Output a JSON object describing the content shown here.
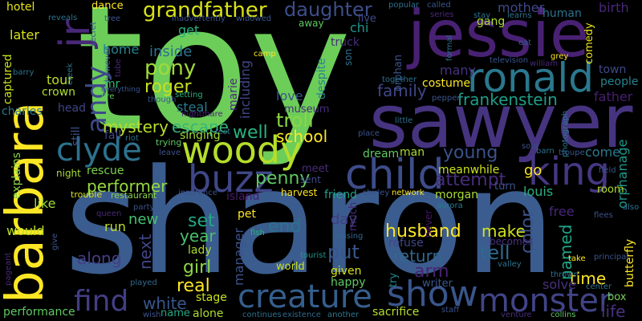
{
  "word_cloud": {
    "background": "#000000",
    "words": [
      {
        "text": "toy",
        "color": "#6dcd59"
      },
      {
        "text": "sharon",
        "color": "#3b5c8e"
      },
      {
        "text": "sawyer",
        "color": "#463480"
      },
      {
        "text": "jessie",
        "color": "#482173"
      },
      {
        "text": "barbara",
        "color": "#fde725"
      },
      {
        "text": "child",
        "color": "#3e4c8a"
      },
      {
        "text": "woody",
        "color": "#b5de2b"
      },
      {
        "text": "ronald",
        "color": "#2a788e"
      },
      {
        "text": "creature",
        "color": "#355f8d"
      },
      {
        "text": "buzz",
        "color": "#3f4788"
      },
      {
        "text": "king",
        "color": "#453781"
      },
      {
        "text": "monster",
        "color": "#414487"
      },
      {
        "text": "show",
        "color": "#39568c"
      },
      {
        "text": "clyde",
        "color": "#2c728e"
      },
      {
        "text": "jr",
        "color": "#482878"
      },
      {
        "text": "find",
        "color": "#433e85"
      },
      {
        "text": "andy",
        "color": "#3e4989"
      },
      {
        "text": "grandfather",
        "color": "#d8e219"
      },
      {
        "text": "daughter",
        "color": "#3d4e8a"
      },
      {
        "text": "pony",
        "color": "#a0da39"
      },
      {
        "text": "roger",
        "color": "#c8e020"
      },
      {
        "text": "family",
        "color": "#3f4788"
      },
      {
        "text": "frankenstein",
        "color": "#1f9e89"
      },
      {
        "text": "mystery",
        "color": "#b8de29"
      },
      {
        "text": "escape",
        "color": "#35b779"
      },
      {
        "text": "troll",
        "color": "#8bd646"
      },
      {
        "text": "school",
        "color": "#fde725"
      },
      {
        "text": "well",
        "color": "#2ab07f"
      },
      {
        "text": "young",
        "color": "#3b528b"
      },
      {
        "text": "attempt",
        "color": "#472d7b"
      },
      {
        "text": "penny",
        "color": "#5ec962"
      },
      {
        "text": "performer",
        "color": "#95d840"
      },
      {
        "text": "husband",
        "color": "#fde725"
      },
      {
        "text": "make",
        "color": "#d2e21b"
      },
      {
        "text": "set",
        "color": "#22a884"
      },
      {
        "text": "year",
        "color": "#4ac16d"
      },
      {
        "text": "end",
        "color": "#2c728e"
      },
      {
        "text": "put",
        "color": "#39568c"
      },
      {
        "text": "tell",
        "color": "#30698e"
      },
      {
        "text": "return",
        "color": "#31688e"
      },
      {
        "text": "arm",
        "color": "#482475"
      },
      {
        "text": "color",
        "color": "#3b528b"
      },
      {
        "text": "named",
        "color": "#20a486"
      },
      {
        "text": "time",
        "color": "#fde725"
      },
      {
        "text": "life",
        "color": "#46327e"
      },
      {
        "text": "real",
        "color": "#fde725"
      },
      {
        "text": "girl",
        "color": "#8bd646"
      },
      {
        "text": "white",
        "color": "#39568c"
      },
      {
        "text": "next",
        "color": "#404688"
      },
      {
        "text": "along",
        "color": "#433e85"
      },
      {
        "text": "new",
        "color": "#46c06f"
      },
      {
        "text": "run",
        "color": "#bddf26"
      },
      {
        "text": "manager",
        "color": "#3b528b"
      },
      {
        "text": "lady",
        "color": "#a8db34"
      },
      {
        "text": "stage",
        "color": "#c8e020"
      },
      {
        "text": "alone",
        "color": "#addc30"
      },
      {
        "text": "name",
        "color": "#22a884"
      },
      {
        "text": "would",
        "color": "#bddf26"
      },
      {
        "text": "like",
        "color": "#a0da39"
      },
      {
        "text": "rescue",
        "color": "#7ad151"
      },
      {
        "text": "captured",
        "color": "#cae11f"
      },
      {
        "text": "charles",
        "color": "#2a788e"
      },
      {
        "text": "explains",
        "color": "#8bd646"
      },
      {
        "text": "performance",
        "color": "#5ec962"
      },
      {
        "text": "tour",
        "color": "#bddf26"
      },
      {
        "text": "crown",
        "color": "#addc30"
      },
      {
        "text": "head",
        "color": "#414487"
      },
      {
        "text": "later",
        "color": "#d8e219"
      },
      {
        "text": "hotel",
        "color": "#e5e419"
      },
      {
        "text": "home",
        "color": "#25848e"
      },
      {
        "text": "mr",
        "color": "#35b779"
      },
      {
        "text": "inside",
        "color": "#2c728e"
      },
      {
        "text": "get",
        "color": "#29af7f"
      },
      {
        "text": "dance",
        "color": "#fde725"
      },
      {
        "text": "chi",
        "color": "#1f958b"
      },
      {
        "text": "truck",
        "color": "#472d7b"
      },
      {
        "text": "despite",
        "color": "#26828e"
      },
      {
        "text": "including",
        "color": "#404688"
      },
      {
        "text": "marie",
        "color": "#482878"
      },
      {
        "text": "love",
        "color": "#39568c"
      },
      {
        "text": "steal",
        "color": "#287c8e"
      },
      {
        "text": "singing",
        "color": "#a0da39"
      },
      {
        "text": "museum",
        "color": "#472c7a"
      },
      {
        "text": "many",
        "color": "#46327e"
      },
      {
        "text": "costume",
        "color": "#fde725"
      },
      {
        "text": "mother",
        "color": "#3f4788"
      },
      {
        "text": "birth",
        "color": "#482878"
      },
      {
        "text": "gang",
        "color": "#addc30"
      },
      {
        "text": "human",
        "color": "#2c728e"
      },
      {
        "text": "comedy",
        "color": "#ece51b"
      },
      {
        "text": "town",
        "color": "#3e4989"
      },
      {
        "text": "people",
        "color": "#25848e"
      },
      {
        "text": "father",
        "color": "#481f70"
      },
      {
        "text": "orphanage",
        "color": "#1f988b"
      },
      {
        "text": "come",
        "color": "#2a788e"
      },
      {
        "text": "go",
        "color": "#fde725"
      },
      {
        "text": "meanwhile",
        "color": "#cae11f"
      },
      {
        "text": "morgan",
        "color": "#a8db34"
      },
      {
        "text": "louis",
        "color": "#29af7f"
      },
      {
        "text": "turn",
        "color": "#3b528b"
      },
      {
        "text": "room",
        "color": "#b5de2b"
      },
      {
        "text": "free",
        "color": "#482878"
      },
      {
        "text": "box",
        "color": "#75d054"
      },
      {
        "text": "butterfly",
        "color": "#fde725"
      },
      {
        "text": "solve",
        "color": "#46327e"
      },
      {
        "text": "writer",
        "color": "#39568c"
      },
      {
        "text": "happy",
        "color": "#5ec962"
      },
      {
        "text": "world",
        "color": "#cae11f"
      },
      {
        "text": "given",
        "color": "#d8e219"
      },
      {
        "text": "sacrifice",
        "color": "#b5de2b"
      },
      {
        "text": "try",
        "color": "#24868e"
      },
      {
        "text": "much",
        "color": "#472a7a"
      },
      {
        "text": "refuse",
        "color": "#3f4788"
      },
      {
        "text": "pet",
        "color": "#fde725"
      },
      {
        "text": "island",
        "color": "#481c6e"
      },
      {
        "text": "meet",
        "color": "#472c7a"
      },
      {
        "text": "friend",
        "color": "#1fa088"
      },
      {
        "text": "harvest",
        "color": "#fde725"
      },
      {
        "text": "sent",
        "color": "#3e4989"
      },
      {
        "text": "dream",
        "color": "#5ec962"
      },
      {
        "text": "man",
        "color": "#a8db34"
      },
      {
        "text": "day",
        "color": "#433e85"
      },
      {
        "text": "fall",
        "color": "#3f4788"
      },
      {
        "text": "night",
        "color": "#a8db34"
      },
      {
        "text": "still",
        "color": "#3b528b"
      },
      {
        "text": "orphan",
        "color": "#3b528b"
      },
      {
        "text": "son",
        "color": "#2c728e"
      },
      {
        "text": "live",
        "color": "#3e4989"
      },
      {
        "text": "becomes",
        "color": "#46327e"
      },
      {
        "text": "never",
        "color": "#481668"
      },
      {
        "text": "restaurant",
        "color": "#8bd646"
      },
      {
        "text": "trouble",
        "color": "#d8e219"
      },
      {
        "text": "insurance",
        "color": "#3b528b"
      },
      {
        "text": "network",
        "color": "#fde725"
      },
      {
        "text": "shirley",
        "color": "#3b528b"
      },
      {
        "text": "aurora",
        "color": "#287c8e"
      },
      {
        "text": "fish",
        "color": "#29af7f"
      },
      {
        "text": "missing",
        "color": "#31688e"
      },
      {
        "text": "tourist",
        "color": "#1f948c"
      },
      {
        "text": "continues",
        "color": "#2c728e"
      },
      {
        "text": "existence",
        "color": "#31688e"
      },
      {
        "text": "another",
        "color": "#2a788e"
      },
      {
        "text": "staff",
        "color": "#3b528b"
      },
      {
        "text": "collins",
        "color": "#5ec962"
      },
      {
        "text": "wish",
        "color": "#3b528b"
      },
      {
        "text": "played",
        "color": "#31688e"
      },
      {
        "text": "venture",
        "color": "#472d7b"
      },
      {
        "text": "center",
        "color": "#2c728e"
      },
      {
        "text": "thrown",
        "color": "#2c728e"
      },
      {
        "text": "valley",
        "color": "#2c728e"
      },
      {
        "text": "principal",
        "color": "#39568c"
      },
      {
        "text": "take",
        "color": "#fde725"
      },
      {
        "text": "also",
        "color": "#2c728e"
      },
      {
        "text": "flees",
        "color": "#3b528b"
      },
      {
        "text": "field",
        "color": "#3b528b"
      },
      {
        "text": "troupe",
        "color": "#39568c"
      },
      {
        "text": "barn",
        "color": "#2c728e"
      },
      {
        "text": "soul",
        "color": "#3b528b"
      },
      {
        "text": "photograph",
        "color": "#2a788e"
      },
      {
        "text": "little",
        "color": "#2c728e"
      },
      {
        "text": "place",
        "color": "#3b528b"
      },
      {
        "text": "together",
        "color": "#2c728e"
      },
      {
        "text": "pepper",
        "color": "#39568c"
      },
      {
        "text": "television",
        "color": "#39568c"
      },
      {
        "text": "william",
        "color": "#482878"
      },
      {
        "text": "grey",
        "color": "#fde725"
      },
      {
        "text": "eat",
        "color": "#39568c"
      },
      {
        "text": "formal",
        "color": "#2c728e"
      },
      {
        "text": "popular",
        "color": "#2c728e"
      },
      {
        "text": "called",
        "color": "#39568c"
      },
      {
        "text": "series",
        "color": "#482878"
      },
      {
        "text": "stay",
        "color": "#2c728e"
      },
      {
        "text": "learns",
        "color": "#2c728e"
      },
      {
        "text": "widowed",
        "color": "#39568c"
      },
      {
        "text": "inadvertently",
        "color": "#3b528b"
      },
      {
        "text": "reveals",
        "color": "#2c728e"
      },
      {
        "text": "tree",
        "color": "#3b528b"
      },
      {
        "text": "secret",
        "color": "#39568c"
      },
      {
        "text": "creek",
        "color": "#2c728e"
      },
      {
        "text": "fire",
        "color": "#5ec962"
      },
      {
        "text": "barry",
        "color": "#2c728e"
      },
      {
        "text": "however",
        "color": "#39568c"
      },
      {
        "text": "everything",
        "color": "#39568c"
      },
      {
        "text": "tube",
        "color": "#482878"
      },
      {
        "text": "though",
        "color": "#39568c"
      },
      {
        "text": "setting",
        "color": "#29af7f"
      },
      {
        "text": "nightmare",
        "color": "#482878"
      },
      {
        "text": "riot",
        "color": "#2c728e"
      },
      {
        "text": "trying",
        "color": "#5ec962"
      },
      {
        "text": "rest",
        "color": "#2c728e"
      },
      {
        "text": "camp",
        "color": "#fde725"
      },
      {
        "text": "away",
        "color": "#5ec962"
      },
      {
        "text": "leave",
        "color": "#3b528b"
      },
      {
        "text": "party",
        "color": "#3b528b"
      },
      {
        "text": "queen",
        "color": "#482878"
      },
      {
        "text": "give",
        "color": "#39568c"
      },
      {
        "text": "pageant",
        "color": "#482878"
      }
    ]
  }
}
